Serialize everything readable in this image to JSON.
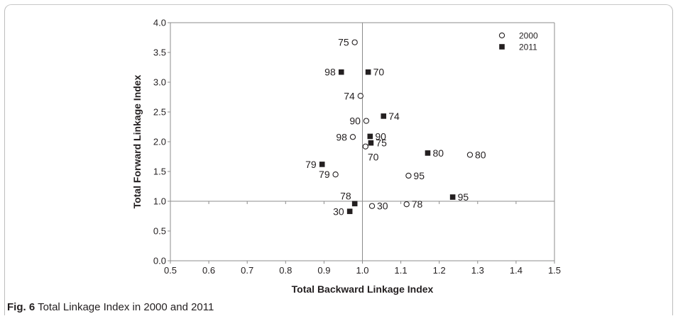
{
  "chart_data": {
    "type": "scatter",
    "title": "",
    "xlabel": "Total Backward Linkage Index",
    "ylabel": "Total Forward Linkage Index",
    "xlim": [
      0.5,
      1.5
    ],
    "ylim": [
      0.0,
      4.0
    ],
    "xticks": [
      "0.5",
      "0.6",
      "0.7",
      "0.8",
      "0.9",
      "1.0",
      "1.1",
      "1.2",
      "1.3",
      "1.4",
      "1.5"
    ],
    "yticks": [
      "0.0",
      "0.5",
      "1.0",
      "1.5",
      "2.0",
      "2.5",
      "3.0",
      "3.5",
      "4.0"
    ],
    "reference_lines": {
      "x": 1.0,
      "y": 1.0
    },
    "grid": false,
    "legend_position": "top-right",
    "series": [
      {
        "name": "2000",
        "marker": "open-circle",
        "points": [
          {
            "label": "75",
            "x": 0.98,
            "y": 3.67,
            "label_side": "left"
          },
          {
            "label": "74",
            "x": 0.995,
            "y": 2.77,
            "label_side": "left"
          },
          {
            "label": "90",
            "x": 1.01,
            "y": 2.35,
            "label_side": "left"
          },
          {
            "label": "98",
            "x": 0.975,
            "y": 2.08,
            "label_side": "left"
          },
          {
            "label": "70",
            "x": 1.008,
            "y": 1.92,
            "label_side": "below-right"
          },
          {
            "label": "80",
            "x": 1.28,
            "y": 1.78,
            "label_side": "right"
          },
          {
            "label": "79",
            "x": 0.93,
            "y": 1.45,
            "label_side": "left"
          },
          {
            "label": "95",
            "x": 1.12,
            "y": 1.43,
            "label_side": "right"
          },
          {
            "label": "30",
            "x": 1.025,
            "y": 0.92,
            "label_side": "right"
          },
          {
            "label": "78",
            "x": 1.115,
            "y": 0.95,
            "label_side": "right"
          }
        ]
      },
      {
        "name": "2011",
        "marker": "filled-square",
        "points": [
          {
            "label": "98",
            "x": 0.945,
            "y": 3.17,
            "label_side": "left"
          },
          {
            "label": "70",
            "x": 1.015,
            "y": 3.17,
            "label_side": "right"
          },
          {
            "label": "74",
            "x": 1.055,
            "y": 2.43,
            "label_side": "right"
          },
          {
            "label": "90",
            "x": 1.02,
            "y": 2.09,
            "label_side": "right"
          },
          {
            "label": "75",
            "x": 1.022,
            "y": 1.98,
            "label_side": "right"
          },
          {
            "label": "80",
            "x": 1.17,
            "y": 1.81,
            "label_side": "right"
          },
          {
            "label": "79",
            "x": 0.895,
            "y": 1.62,
            "label_side": "left"
          },
          {
            "label": "95",
            "x": 1.235,
            "y": 1.07,
            "label_side": "right"
          },
          {
            "label": "78",
            "x": 0.98,
            "y": 0.96,
            "label_side": "above-left"
          },
          {
            "label": "30",
            "x": 0.967,
            "y": 0.83,
            "label_side": "left"
          }
        ]
      }
    ]
  },
  "caption": {
    "figure_label": "Fig. 6",
    "text": "Total Linkage Index in 2000 and 2011"
  }
}
